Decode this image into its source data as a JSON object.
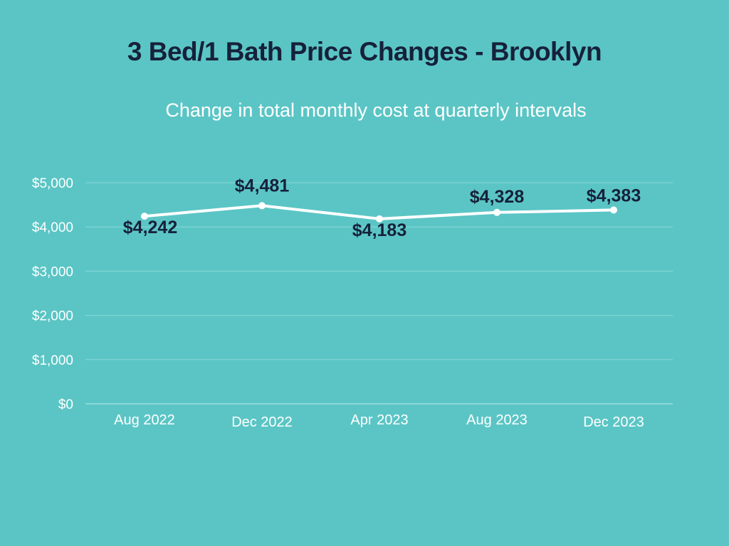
{
  "chart_data": {
    "type": "line",
    "title": "3 Bed/1 Bath Price Changes - Brooklyn",
    "subtitle": "Change in total monthly cost at quarterly intervals",
    "categories": [
      "Aug 2022",
      "Dec 2022",
      "Apr 2023",
      "Aug 2023",
      "Dec 2023"
    ],
    "series": [
      {
        "name": "Total monthly cost",
        "values": [
          4242,
          4481,
          4183,
          4328,
          4383
        ],
        "labels": [
          "$4,242",
          "$4,481",
          "$4,183",
          "$4,328",
          "$4,383"
        ]
      }
    ],
    "ylim": [
      0,
      5000
    ],
    "yticks": [
      0,
      1000,
      2000,
      3000,
      4000,
      5000
    ],
    "ytick_labels": [
      "$0",
      "$1,000",
      "$2,000",
      "$3,000",
      "$4,000",
      "$5,000"
    ],
    "xlabel": "",
    "ylabel": "",
    "grid": true,
    "legend": "none"
  },
  "colors": {
    "background": "#5bc5c5",
    "line": "#ffffff",
    "title": "#16213a",
    "labels": "#16213a",
    "grid": "#8ad8d8"
  }
}
